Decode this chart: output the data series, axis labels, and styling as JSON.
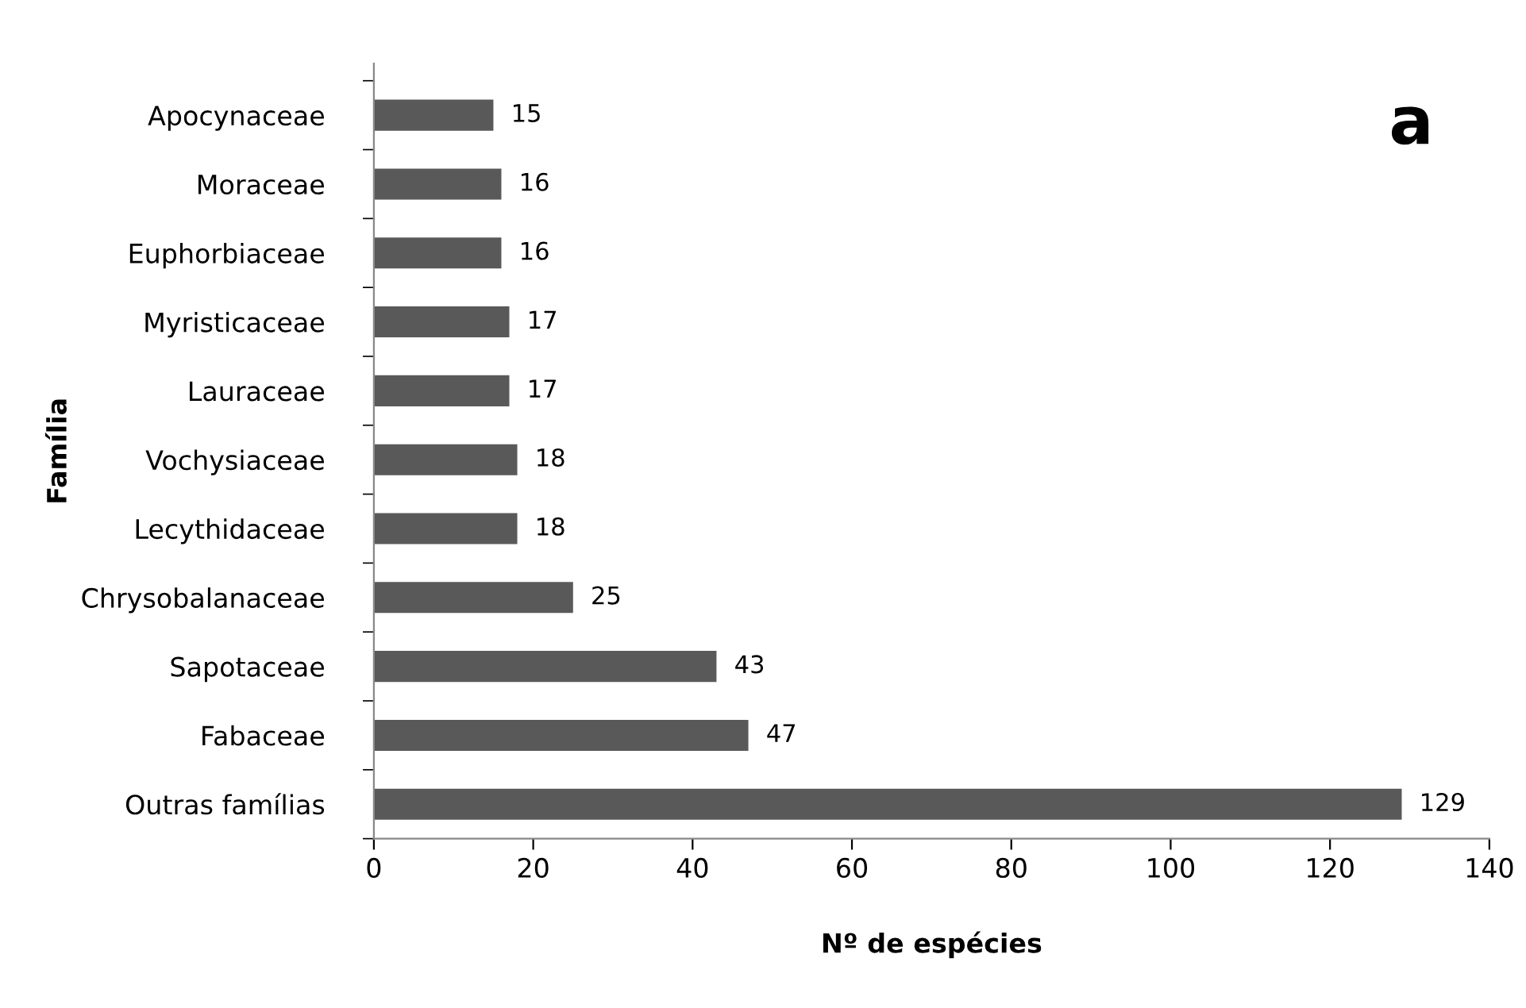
{
  "chart_data": {
    "type": "bar",
    "orientation": "horizontal",
    "categories": [
      "Apocynaceae",
      "Moraceae",
      "Euphorbiaceae",
      "Myristicaceae",
      "Lauraceae",
      "Vochysiaceae",
      "Lecythidaceae",
      "Chrysobalanaceae",
      "Sapotaceae",
      "Fabaceae",
      "Outras famílias"
    ],
    "values": [
      15,
      16,
      16,
      17,
      17,
      18,
      18,
      25,
      43,
      47,
      129
    ],
    "color": "#595959",
    "xlim": [
      0,
      140
    ],
    "xticks": [
      0,
      20,
      40,
      60,
      80,
      100,
      120,
      140
    ],
    "xlabel": "Nº de espécies",
    "ylabel": "Família",
    "annotations": [
      "a"
    ],
    "data_labels": true,
    "grid": false,
    "legend": false
  }
}
